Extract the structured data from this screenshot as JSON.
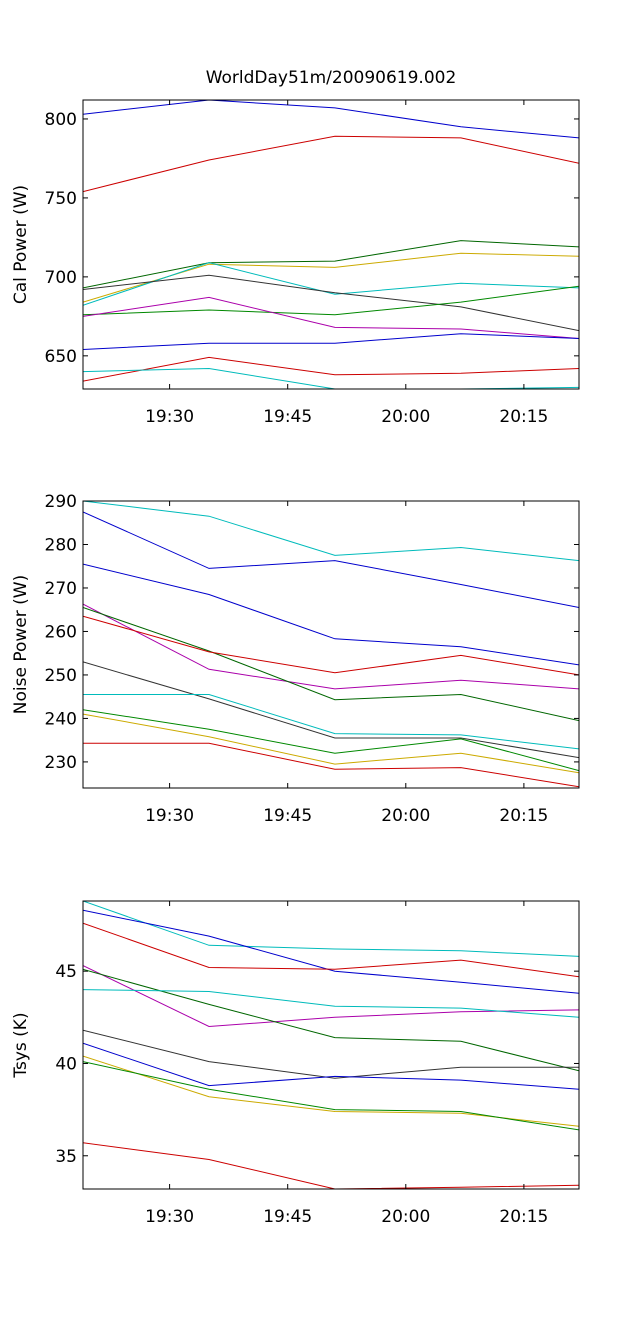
{
  "title": "WorldDay51m/20090619.002",
  "chart_data": [
    {
      "type": "line",
      "ylabel": "Cal Power (W)",
      "xlabel": "",
      "xlim": [
        "19:19",
        "20:22"
      ],
      "ylim": [
        629,
        812
      ],
      "x_ticks": [
        "19:30",
        "19:45",
        "20:00",
        "20:15"
      ],
      "y_ticks": [
        650,
        700,
        750,
        800
      ],
      "grid": false,
      "x": [
        "19:19",
        "19:35",
        "19:51",
        "20:07",
        "20:22"
      ],
      "series": [
        {
          "color": "#0000cc",
          "values": [
            803,
            812,
            807,
            795,
            788
          ]
        },
        {
          "color": "#cc0000",
          "values": [
            754,
            774,
            789,
            788,
            772
          ]
        },
        {
          "color": "#006600",
          "values": [
            693,
            709,
            710,
            723,
            719
          ]
        },
        {
          "color": "#ccaa00",
          "values": [
            684,
            708,
            706,
            715,
            713
          ]
        },
        {
          "color": "#00bbbb",
          "values": [
            682,
            709,
            689,
            696,
            693
          ]
        },
        {
          "color": "#333333",
          "values": [
            692,
            701,
            690,
            681,
            666
          ]
        },
        {
          "color": "#008800",
          "values": [
            676,
            679,
            676,
            684,
            694
          ]
        },
        {
          "color": "#aa00aa",
          "values": [
            675,
            687,
            668,
            667,
            661
          ]
        },
        {
          "color": "#0000cc",
          "values": [
            654,
            658,
            658,
            664,
            661
          ]
        },
        {
          "color": "#cc0000",
          "values": [
            634,
            649,
            638,
            639,
            642
          ]
        },
        {
          "color": "#00bbbb",
          "values": [
            640,
            642,
            629,
            629,
            630
          ]
        }
      ]
    },
    {
      "type": "line",
      "ylabel": "Noise Power (W)",
      "xlabel": "",
      "xlim": [
        "19:19",
        "20:22"
      ],
      "ylim": [
        224,
        290
      ],
      "x_ticks": [
        "19:30",
        "19:45",
        "20:00",
        "20:15"
      ],
      "y_ticks": [
        230,
        240,
        250,
        260,
        270,
        280,
        290
      ],
      "grid": false,
      "x": [
        "19:19",
        "19:35",
        "19:51",
        "20:07",
        "20:22"
      ],
      "series": [
        {
          "color": "#00bbbb",
          "values": [
            290,
            286.5,
            277.5,
            279.3,
            276.3
          ]
        },
        {
          "color": "#0000cc",
          "values": [
            287.5,
            274.5,
            276.3,
            270.8,
            265.5
          ]
        },
        {
          "color": "#0000cc",
          "values": [
            275.5,
            268.5,
            258.3,
            256.5,
            252.3
          ]
        },
        {
          "color": "#aa00aa",
          "values": [
            266.3,
            251.3,
            246.8,
            248.8,
            246.8
          ]
        },
        {
          "color": "#006600",
          "values": [
            265.5,
            255.5,
            244.3,
            245.5,
            239.5
          ]
        },
        {
          "color": "#cc0000",
          "values": [
            263.5,
            255.3,
            250.5,
            254.5,
            250
          ]
        },
        {
          "color": "#333333",
          "values": [
            253,
            244.5,
            235.5,
            235.5,
            231
          ]
        },
        {
          "color": "#00bbbb",
          "values": [
            245.5,
            245.5,
            236.5,
            236.2,
            233
          ]
        },
        {
          "color": "#008800",
          "values": [
            242,
            237.5,
            232,
            235.3,
            228
          ]
        },
        {
          "color": "#ccaa00",
          "values": [
            241,
            235.8,
            229.5,
            232,
            227.5
          ]
        },
        {
          "color": "#cc0000",
          "values": [
            234.3,
            234.3,
            228.3,
            228.7,
            224.3
          ]
        }
      ]
    },
    {
      "type": "line",
      "ylabel": "Tsys (K)",
      "xlabel": "",
      "xlim": [
        "19:19",
        "20:22"
      ],
      "ylim": [
        33.2,
        48.8
      ],
      "x_ticks": [
        "19:30",
        "19:45",
        "20:00",
        "20:15"
      ],
      "y_ticks": [
        35,
        40,
        45
      ],
      "grid": false,
      "x": [
        "19:19",
        "19:35",
        "19:51",
        "20:07",
        "20:22"
      ],
      "series": [
        {
          "color": "#00bbbb",
          "values": [
            48.8,
            46.4,
            46.2,
            46.1,
            45.8
          ]
        },
        {
          "color": "#0000cc",
          "values": [
            48.3,
            46.9,
            45.0,
            44.4,
            43.8
          ]
        },
        {
          "color": "#cc0000",
          "values": [
            47.6,
            45.2,
            45.1,
            45.6,
            44.7
          ]
        },
        {
          "color": "#aa00aa",
          "values": [
            45.3,
            42.0,
            42.5,
            42.8,
            42.9
          ]
        },
        {
          "color": "#006600",
          "values": [
            45.1,
            43.2,
            41.4,
            41.2,
            39.6
          ]
        },
        {
          "color": "#00bbbb",
          "values": [
            44.0,
            43.9,
            43.1,
            43.0,
            42.5
          ]
        },
        {
          "color": "#333333",
          "values": [
            41.8,
            40.1,
            39.2,
            39.8,
            39.8
          ]
        },
        {
          "color": "#0000cc",
          "values": [
            41.1,
            38.8,
            39.3,
            39.1,
            38.6
          ]
        },
        {
          "color": "#ccaa00",
          "values": [
            40.4,
            38.2,
            37.4,
            37.3,
            36.6
          ]
        },
        {
          "color": "#008800",
          "values": [
            40.1,
            38.6,
            37.5,
            37.4,
            36.4
          ]
        },
        {
          "color": "#cc0000",
          "values": [
            35.7,
            34.8,
            33.2,
            33.3,
            33.4
          ]
        }
      ]
    }
  ]
}
